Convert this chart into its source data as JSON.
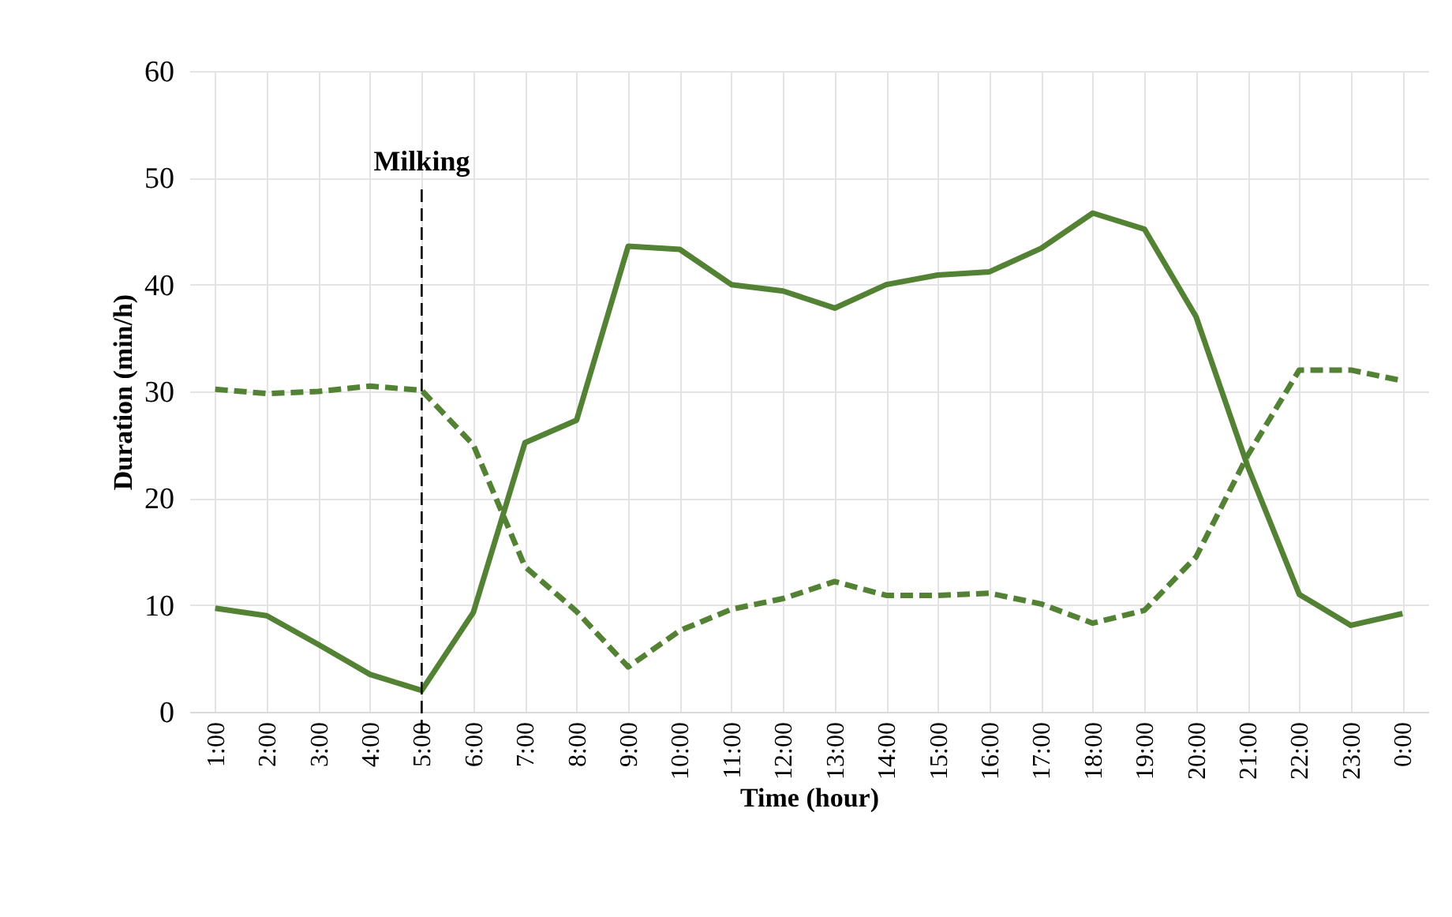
{
  "chart_data": {
    "type": "line",
    "xlabel": "Time (hour)",
    "ylabel": "Duration (min/h)",
    "categories": [
      "1:00",
      "2:00",
      "3:00",
      "4:00",
      "5:00",
      "6:00",
      "7:00",
      "8:00",
      "9:00",
      "10:00",
      "11:00",
      "12:00",
      "13:00",
      "14:00",
      "15:00",
      "16:00",
      "17:00",
      "18:00",
      "19:00",
      "20:00",
      "21:00",
      "22:00",
      "23:00",
      "0:00"
    ],
    "series": [
      {
        "color": "#548235",
        "line_style": "solid",
        "values": [
          9.7,
          9.0,
          6.3,
          3.5,
          2.0,
          9.3,
          25.2,
          27.3,
          43.6,
          43.3,
          40.0,
          39.4,
          37.8,
          40.0,
          40.9,
          41.2,
          43.4,
          46.7,
          45.2,
          37.0,
          23.0,
          11.0,
          8.1,
          9.2
        ]
      },
      {
        "color": "#548235",
        "line_style": "dashed",
        "values": [
          30.2,
          29.8,
          30.0,
          30.5,
          30.1,
          25.0,
          13.6,
          9.4,
          4.2,
          7.6,
          9.6,
          10.6,
          12.2,
          10.9,
          10.9,
          11.1,
          10.1,
          8.3,
          9.5,
          14.5,
          24.0,
          32.0,
          32.0,
          31.0
        ]
      }
    ],
    "ylim": [
      0,
      60
    ],
    "yticks": [
      0,
      10,
      20,
      30,
      40,
      50,
      60
    ],
    "grid": true,
    "ref_lines": [
      {
        "axis": "x",
        "value": "5:00",
        "label": "Milking",
        "color": "#000000",
        "line_style": "dashed"
      }
    ]
  }
}
